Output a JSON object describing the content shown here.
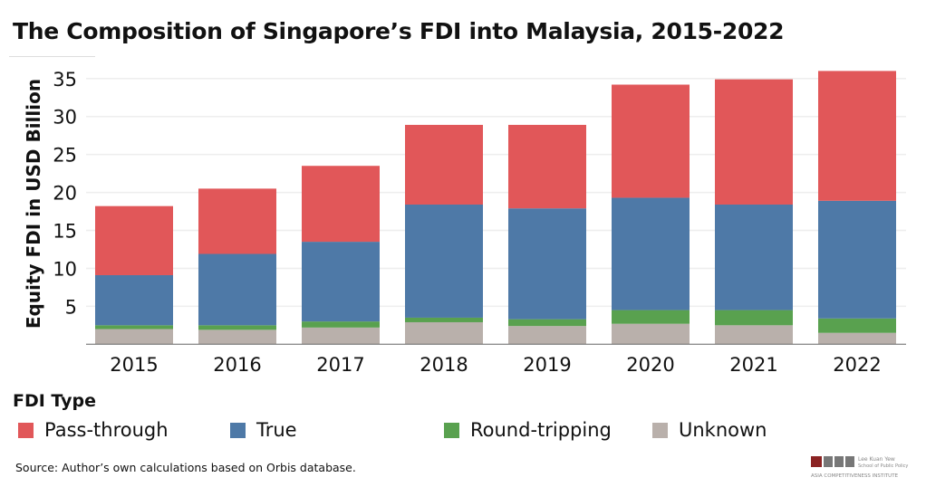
{
  "title": "The Composition of Singapore’s FDI into Malaysia, 2015-2022",
  "source": "Source: Author’s own calculations based on Orbis database.",
  "logo_text": {
    "line1": "Lee Kuan Yew",
    "line2": "School of Public Policy",
    "line3": "Asia Competitiveness Institute",
    "mark": "LKY"
  },
  "chart_data": {
    "type": "bar",
    "stacked": true,
    "title": "The Composition of Singapore’s FDI into Malaysia, 2015-2022",
    "xlabel": "",
    "ylabel": "Equity FDI in USD Billion",
    "ylim": [
      0,
      36.5
    ],
    "yticks": [
      5,
      10,
      15,
      20,
      25,
      30,
      35
    ],
    "grid": true,
    "legend_title": "FDI Type",
    "legend_placement": "bottom",
    "categories": [
      "2015",
      "2016",
      "2017",
      "2018",
      "2019",
      "2020",
      "2021",
      "2022"
    ],
    "series": [
      {
        "name": "Unknown",
        "color": "#b9b0ab",
        "values": [
          2.0,
          1.9,
          2.2,
          2.9,
          2.4,
          2.7,
          2.5,
          1.5
        ]
      },
      {
        "name": "Round-tripping",
        "color": "#59a14f",
        "values": [
          0.5,
          0.6,
          0.8,
          0.6,
          0.9,
          1.8,
          2.0,
          1.9
        ]
      },
      {
        "name": "True",
        "color": "#4e79a7",
        "values": [
          6.6,
          9.4,
          10.5,
          14.9,
          14.6,
          14.8,
          13.9,
          15.5
        ]
      },
      {
        "name": "Pass-through",
        "color": "#e15759",
        "values": [
          9.1,
          8.6,
          10.0,
          10.5,
          11.0,
          14.9,
          16.5,
          17.1
        ]
      }
    ],
    "legend_order": [
      "Pass-through",
      "True",
      "Round-tripping",
      "Unknown"
    ]
  }
}
